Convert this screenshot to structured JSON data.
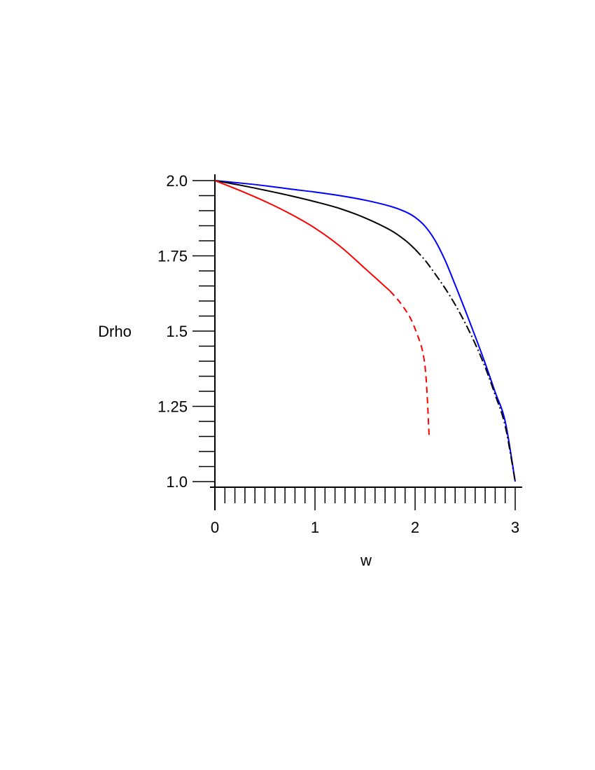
{
  "chart_data": {
    "type": "line",
    "title": "",
    "xlabel": "w",
    "ylabel": "Drho",
    "xlim": [
      0,
      3
    ],
    "ylim": [
      1.0,
      2.0
    ],
    "x_ticks": [
      "0",
      "1",
      "2",
      "3"
    ],
    "y_ticks": [
      "1.0",
      "1.25",
      "1.5",
      "1.75",
      "2.0"
    ],
    "grid": false,
    "legend": "none",
    "series": [
      {
        "color": "#0000ff",
        "style": "solid",
        "x": [
          0,
          0.25,
          0.5,
          0.75,
          1.0,
          1.25,
          1.5,
          1.75,
          1.9,
          2.0,
          2.1,
          2.2,
          2.3,
          2.4,
          2.5,
          2.6,
          2.7,
          2.8,
          2.9,
          3.0
        ],
        "y": [
          2.0,
          1.992,
          1.983,
          1.972,
          1.962,
          1.95,
          1.935,
          1.915,
          1.897,
          1.878,
          1.848,
          1.801,
          1.735,
          1.654,
          1.57,
          1.483,
          1.393,
          1.297,
          1.2,
          1.0
        ]
      },
      {
        "color": "#000000",
        "style": "solid-then-dashdot",
        "x": [
          0,
          0.25,
          0.5,
          0.75,
          1.0,
          1.25,
          1.5,
          1.75,
          1.9,
          2.0,
          2.1,
          2.2,
          2.3,
          2.4,
          2.5,
          2.6,
          2.7,
          2.8,
          2.9,
          3.0
        ],
        "y": [
          2.0,
          1.985,
          1.968,
          1.95,
          1.93,
          1.907,
          1.876,
          1.836,
          1.802,
          1.772,
          1.735,
          1.69,
          1.642,
          1.588,
          1.527,
          1.458,
          1.38,
          1.288,
          1.185,
          1.0
        ]
      },
      {
        "color": "#ff0000",
        "style": "solid-then-dashed",
        "x": [
          0,
          0.25,
          0.5,
          0.75,
          1.0,
          1.25,
          1.5,
          1.75,
          1.85,
          1.95,
          2.02,
          2.07,
          2.1,
          2.12,
          2.14
        ],
        "y": [
          2.0,
          1.967,
          1.931,
          1.89,
          1.842,
          1.782,
          1.708,
          1.633,
          1.595,
          1.545,
          1.49,
          1.44,
          1.38,
          1.29,
          1.15
        ]
      }
    ]
  }
}
